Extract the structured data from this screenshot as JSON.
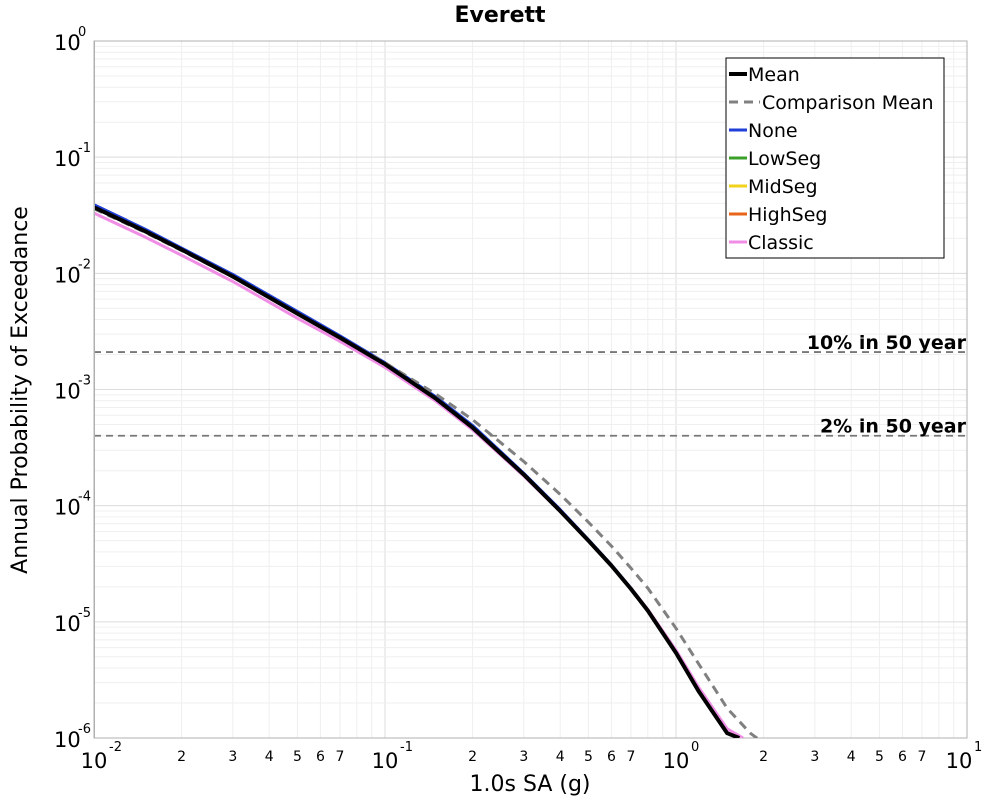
{
  "chart_data": {
    "type": "line",
    "title": "Everett",
    "xlabel": "1.0s SA (g)",
    "ylabel": "Annual Probability of Exceedance",
    "x_scale": "log",
    "y_scale": "log",
    "xlim": [
      0.01,
      10
    ],
    "ylim": [
      1e-06,
      1
    ],
    "grid": true,
    "legend_position": "top-right",
    "x_major_ticks": [
      {
        "value": 0.01,
        "base": "10",
        "exp": "-2"
      },
      {
        "value": 0.1,
        "base": "10",
        "exp": "-1"
      },
      {
        "value": 1,
        "base": "10",
        "exp": "0"
      },
      {
        "value": 10,
        "base": "10",
        "exp": "1"
      }
    ],
    "x_minor_labels": [
      "2",
      "3",
      "4",
      "5",
      "6",
      "7"
    ],
    "y_major_ticks": [
      {
        "value": 1,
        "base": "10",
        "exp": "0"
      },
      {
        "value": 0.1,
        "base": "10",
        "exp": "-1"
      },
      {
        "value": 0.01,
        "base": "10",
        "exp": "-2"
      },
      {
        "value": 0.001,
        "base": "10",
        "exp": "-3"
      },
      {
        "value": 0.0001,
        "base": "10",
        "exp": "-4"
      },
      {
        "value": 1e-05,
        "base": "10",
        "exp": "-5"
      },
      {
        "value": 1e-06,
        "base": "10",
        "exp": "-6"
      }
    ],
    "reference_lines": [
      {
        "label": "10% in 50 year",
        "y": 0.0021,
        "color": "#777777"
      },
      {
        "label": "2% in 50 year",
        "y": 0.0004,
        "color": "#777777"
      }
    ],
    "series": [
      {
        "name": "None",
        "color": "#1f3fd8",
        "dash": "solid",
        "width": 3,
        "x": [
          0.01,
          0.015,
          0.02,
          0.03,
          0.05,
          0.07,
          0.1,
          0.15,
          0.2,
          0.3,
          0.4,
          0.5,
          0.6,
          0.7,
          0.8,
          1.0,
          1.2,
          1.5,
          1.65
        ],
        "y": [
          0.039,
          0.024,
          0.0165,
          0.0098,
          0.0047,
          0.0029,
          0.0017,
          0.00086,
          0.00049,
          0.00019,
          9.25e-05,
          5.1e-05,
          3.1e-05,
          1.95e-05,
          1.27e-05,
          5.5e-06,
          2.5e-06,
          1.1e-06,
          1e-06
        ]
      },
      {
        "name": "LowSeg",
        "color": "#3aa02a",
        "dash": "solid",
        "width": 2,
        "x": [
          0.01,
          0.015,
          0.02,
          0.03,
          0.05,
          0.07,
          0.1,
          0.15,
          0.2,
          0.3,
          0.4,
          0.5,
          0.6,
          0.7,
          0.8,
          1.0,
          1.2,
          1.5,
          1.65
        ],
        "y": [
          0.037,
          0.023,
          0.016,
          0.0094,
          0.0045,
          0.0028,
          0.00165,
          0.00083,
          0.00047,
          0.000185,
          9e-05,
          5e-05,
          3.05e-05,
          1.92e-05,
          1.25e-05,
          5.4e-06,
          2.5e-06,
          1.1e-06,
          1e-06
        ]
      },
      {
        "name": "MidSeg",
        "color": "#f2d21c",
        "dash": "solid",
        "width": 2,
        "x": [
          0.01,
          0.015,
          0.02,
          0.03,
          0.05,
          0.07,
          0.1,
          0.15,
          0.2,
          0.3,
          0.4,
          0.5,
          0.6,
          0.7,
          0.8,
          1.0,
          1.2,
          1.5,
          1.65
        ],
        "y": [
          0.037,
          0.023,
          0.016,
          0.0094,
          0.0045,
          0.0028,
          0.00165,
          0.00083,
          0.00047,
          0.000185,
          9e-05,
          5e-05,
          3.05e-05,
          1.92e-05,
          1.25e-05,
          5.4e-06,
          2.5e-06,
          1.1e-06,
          1e-06
        ]
      },
      {
        "name": "HighSeg",
        "color": "#e8641a",
        "dash": "solid",
        "width": 2,
        "x": [
          0.01,
          0.015,
          0.02,
          0.03,
          0.05,
          0.07,
          0.1,
          0.15,
          0.2,
          0.3,
          0.4,
          0.5,
          0.6,
          0.7,
          0.8,
          1.0,
          1.2,
          1.5,
          1.65
        ],
        "y": [
          0.037,
          0.023,
          0.016,
          0.0094,
          0.0045,
          0.0028,
          0.00165,
          0.00083,
          0.00047,
          0.000185,
          9e-05,
          5e-05,
          3.05e-05,
          1.92e-05,
          1.25e-05,
          5.4e-06,
          2.5e-06,
          1.1e-06,
          1e-06
        ]
      },
      {
        "name": "Classic",
        "color": "#f08ee6",
        "dash": "solid",
        "width": 3,
        "x": [
          0.01,
          0.015,
          0.02,
          0.03,
          0.05,
          0.07,
          0.1,
          0.15,
          0.2,
          0.3,
          0.4,
          0.5,
          0.6,
          0.7,
          0.8,
          1.0,
          1.2,
          1.5,
          1.7
        ],
        "y": [
          0.033,
          0.0205,
          0.0143,
          0.0085,
          0.0041,
          0.0026,
          0.00155,
          0.00079,
          0.00045,
          0.00018,
          8.9e-05,
          5e-05,
          3.05e-05,
          1.95e-05,
          1.28e-05,
          5.7e-06,
          2.7e-06,
          1.2e-06,
          1e-06
        ]
      },
      {
        "name": "Comparison Mean",
        "color": "#808080",
        "dash": "dashed",
        "width": 3,
        "x": [
          0.01,
          0.015,
          0.02,
          0.03,
          0.05,
          0.07,
          0.1,
          0.15,
          0.2,
          0.3,
          0.4,
          0.5,
          0.6,
          0.7,
          0.8,
          1.0,
          1.2,
          1.5,
          1.8,
          1.95
        ],
        "y": [
          0.036,
          0.0225,
          0.0157,
          0.0093,
          0.0045,
          0.0028,
          0.0017,
          0.00091,
          0.00055,
          0.00024,
          0.000125,
          7.2e-05,
          4.5e-05,
          2.9e-05,
          1.95e-05,
          8.8e-06,
          4.3e-06,
          1.8e-06,
          1.1e-06,
          9.5e-07
        ]
      },
      {
        "name": "Mean",
        "color": "#000000",
        "dash": "solid",
        "width": 4,
        "x": [
          0.01,
          0.015,
          0.02,
          0.03,
          0.05,
          0.07,
          0.1,
          0.15,
          0.2,
          0.3,
          0.4,
          0.5,
          0.6,
          0.7,
          0.8,
          1.0,
          1.2,
          1.5,
          1.65
        ],
        "y": [
          0.037,
          0.023,
          0.016,
          0.0094,
          0.0045,
          0.0028,
          0.00165,
          0.00083,
          0.00047,
          0.000185,
          9e-05,
          5e-05,
          3.05e-05,
          1.92e-05,
          1.25e-05,
          5.4e-06,
          2.5e-06,
          1.1e-06,
          1e-06
        ]
      }
    ],
    "legend": [
      {
        "name": "Mean",
        "color": "#000000",
        "dash": "solid"
      },
      {
        "name": "Comparison Mean",
        "color": "#808080",
        "dash": "dashed"
      },
      {
        "name": "None",
        "color": "#1f3fd8",
        "dash": "solid"
      },
      {
        "name": "LowSeg",
        "color": "#3aa02a",
        "dash": "solid"
      },
      {
        "name": "MidSeg",
        "color": "#f2d21c",
        "dash": "solid"
      },
      {
        "name": "HighSeg",
        "color": "#e8641a",
        "dash": "solid"
      },
      {
        "name": "Classic",
        "color": "#f08ee6",
        "dash": "solid"
      }
    ]
  }
}
